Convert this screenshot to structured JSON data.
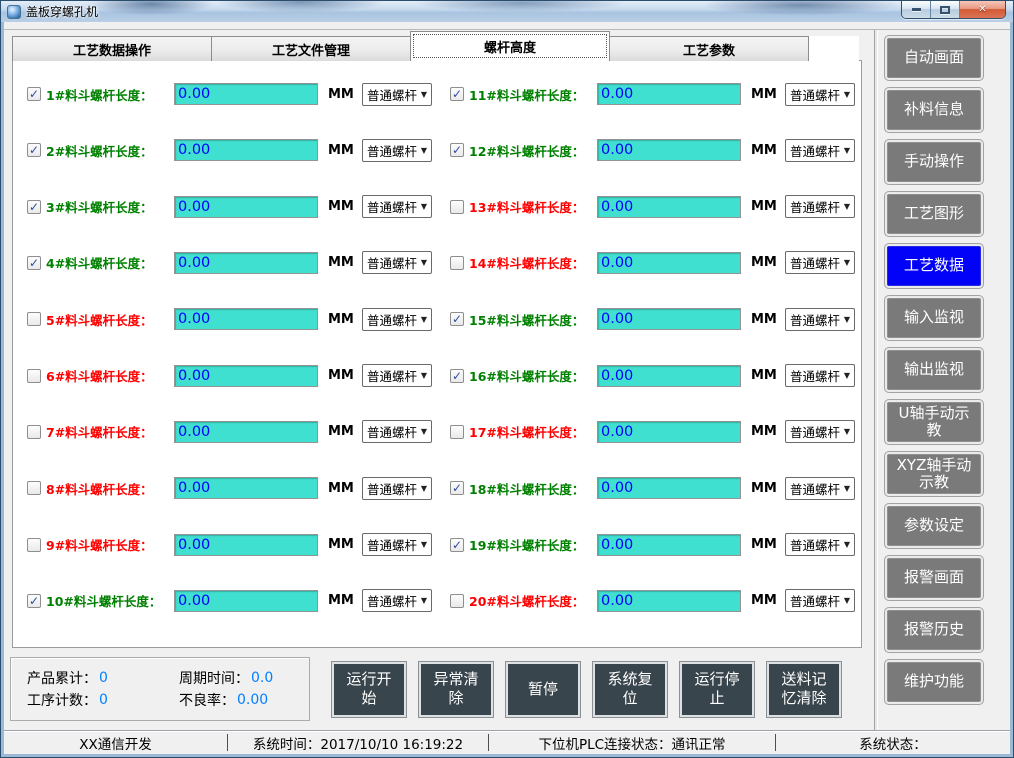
{
  "window": {
    "title": "盖板穿螺孔机",
    "close_glyph": "✕"
  },
  "tabs": [
    {
      "label": "工艺数据操作",
      "active": false
    },
    {
      "label": "工艺文件管理",
      "active": false
    },
    {
      "label": "螺杆高度",
      "active": true
    },
    {
      "label": "工艺参数",
      "active": false
    }
  ],
  "screws": {
    "unit": "MM",
    "items": [
      {
        "label": "1#料斗螺杆长度：",
        "value": "0.00",
        "type": "普通螺杆",
        "checked": true
      },
      {
        "label": "2#料斗螺杆长度：",
        "value": "0.00",
        "type": "普通螺杆",
        "checked": true
      },
      {
        "label": "3#料斗螺杆长度：",
        "value": "0.00",
        "type": "普通螺杆",
        "checked": true
      },
      {
        "label": "4#料斗螺杆长度：",
        "value": "0.00",
        "type": "普通螺杆",
        "checked": true
      },
      {
        "label": "5#料斗螺杆长度：",
        "value": "0.00",
        "type": "普通螺杆",
        "checked": false
      },
      {
        "label": "6#料斗螺杆长度：",
        "value": "0.00",
        "type": "普通螺杆",
        "checked": false
      },
      {
        "label": "7#料斗螺杆长度：",
        "value": "0.00",
        "type": "普通螺杆",
        "checked": false
      },
      {
        "label": "8#料斗螺杆长度：",
        "value": "0.00",
        "type": "普通螺杆",
        "checked": false
      },
      {
        "label": "9#料斗螺杆长度：",
        "value": "0.00",
        "type": "普通螺杆",
        "checked": false
      },
      {
        "label": "10#料斗螺杆长度：",
        "value": "0.00",
        "type": "普通螺杆",
        "checked": true
      },
      {
        "label": "11#料斗螺杆长度：",
        "value": "0.00",
        "type": "普通螺杆",
        "checked": true
      },
      {
        "label": "12#料斗螺杆长度：",
        "value": "0.00",
        "type": "普通螺杆",
        "checked": true
      },
      {
        "label": "13#料斗螺杆长度：",
        "value": "0.00",
        "type": "普通螺杆",
        "checked": false
      },
      {
        "label": "14#料斗螺杆长度：",
        "value": "0.00",
        "type": "普通螺杆",
        "checked": false
      },
      {
        "label": "15#料斗螺杆长度：",
        "value": "0.00",
        "type": "普通螺杆",
        "checked": true
      },
      {
        "label": "16#料斗螺杆长度：",
        "value": "0.00",
        "type": "普通螺杆",
        "checked": true
      },
      {
        "label": "17#料斗螺杆长度：",
        "value": "0.00",
        "type": "普通螺杆",
        "checked": false
      },
      {
        "label": "18#料斗螺杆长度：",
        "value": "0.00",
        "type": "普通螺杆",
        "checked": true
      },
      {
        "label": "19#料斗螺杆长度：",
        "value": "0.00",
        "type": "普通螺杆",
        "checked": true
      },
      {
        "label": "20#料斗螺杆长度：",
        "value": "0.00",
        "type": "普通螺杆",
        "checked": false
      }
    ]
  },
  "sidebar": {
    "items": [
      {
        "label": "自动画面",
        "active": false
      },
      {
        "label": "补料信息",
        "active": false
      },
      {
        "label": "手动操作",
        "active": false
      },
      {
        "label": "工艺图形",
        "active": false
      },
      {
        "label": "工艺数据",
        "active": true
      },
      {
        "label": "输入监视",
        "active": false
      },
      {
        "label": "输出监视",
        "active": false
      },
      {
        "label": "U轴手动示教",
        "active": false
      },
      {
        "label": "XYZ轴手动示教",
        "active": false
      },
      {
        "label": "参数设定",
        "active": false
      },
      {
        "label": "报警画面",
        "active": false
      },
      {
        "label": "报警历史",
        "active": false
      },
      {
        "label": "维护功能",
        "active": false
      }
    ]
  },
  "stats": {
    "items": [
      {
        "label": "产品累计：",
        "value": "0"
      },
      {
        "label": "周期时间：",
        "value": "0.0"
      },
      {
        "label": "工序计数：",
        "value": "0"
      },
      {
        "label": "不良率：",
        "value": "0.00"
      }
    ]
  },
  "controls": {
    "items": [
      "运行开始",
      "异常清除",
      "暂停",
      "系统复位",
      "运行停止",
      "送料记忆清除"
    ]
  },
  "statusbar": {
    "sections": [
      "XX通信开发",
      "系统时间：2017/10/10 16:19:22",
      "下位机PLC连接状态：通讯正常",
      "系统状态："
    ]
  }
}
